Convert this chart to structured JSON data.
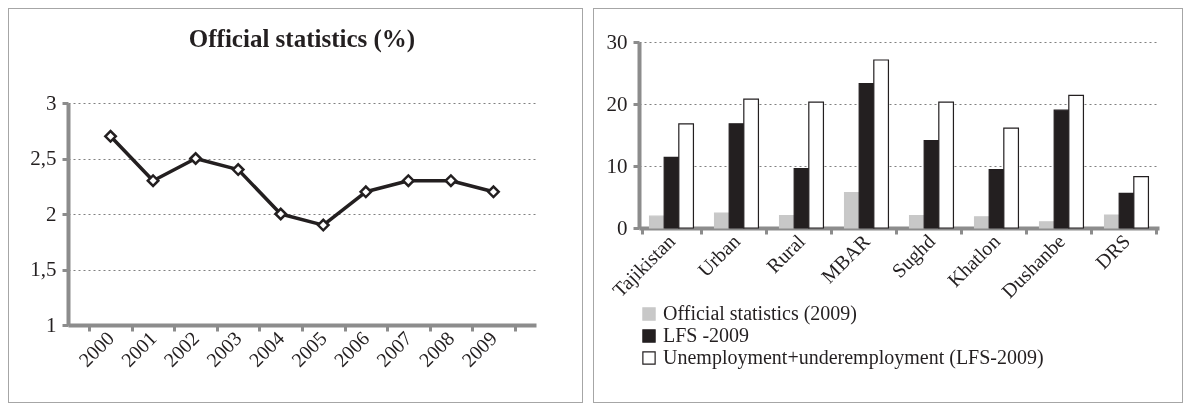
{
  "chart_data": [
    {
      "type": "line",
      "title": "Official statistics (%)",
      "categories": [
        "2000",
        "2001",
        "2002",
        "2003",
        "2004",
        "2005",
        "2006",
        "2007",
        "2008",
        "2009"
      ],
      "values": [
        2.7,
        2.3,
        2.5,
        2.4,
        2.0,
        1.9,
        2.2,
        2.3,
        2.3,
        2.2
      ],
      "color": "#231f20",
      "ylim": [
        1,
        3
      ],
      "yticks": [
        1,
        {
          "value": 1.5,
          "label": "1,5"
        },
        2,
        {
          "value": 2.5,
          "label": "2,5"
        },
        3
      ],
      "grid": "y",
      "marker": "diamond",
      "line_style": "solid"
    },
    {
      "type": "bar",
      "categories": [
        "Tajikistan",
        "Urban",
        "Rural",
        "MBAR",
        "Sughd",
        "Khatlon",
        "Dushanbe",
        "DRS"
      ],
      "series": [
        {
          "name": "Official statistics (2009)",
          "color": "#c8c8c8",
          "values": [
            1.9,
            2.4,
            2.0,
            5.7,
            2.0,
            1.8,
            1.0,
            2.1
          ]
        },
        {
          "name": "LFS -2009",
          "color": "#231f20",
          "values": [
            11.4,
            16.8,
            9.6,
            23.3,
            14.1,
            9.4,
            19.0,
            5.6
          ]
        },
        {
          "name": "Unemployment+underemployment (LFS-2009)",
          "color": "#ffffff",
          "values": [
            16.8,
            20.8,
            20.3,
            27.1,
            20.3,
            16.1,
            21.4,
            8.3
          ]
        }
      ],
      "ylim": [
        0,
        30
      ],
      "yticks": [
        0,
        10,
        20,
        30
      ],
      "grid": "y",
      "legend": "bottom"
    }
  ]
}
